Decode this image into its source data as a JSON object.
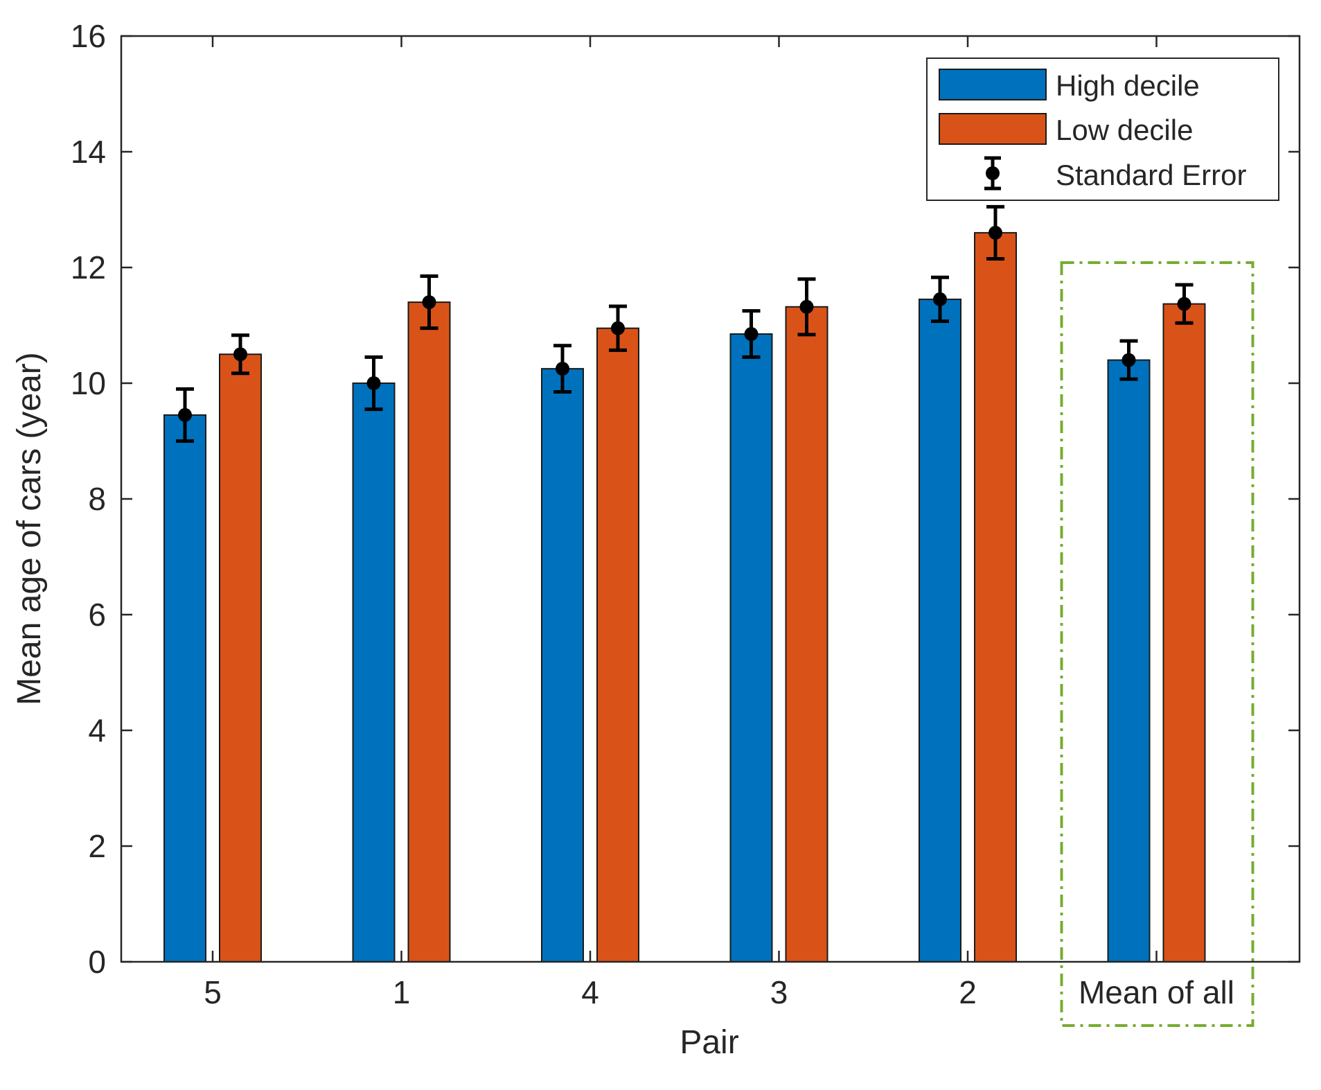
{
  "chart_data": {
    "type": "bar",
    "title": "",
    "xlabel": "Pair",
    "ylabel": "Mean age of cars (year)",
    "ylim": [
      0,
      16
    ],
    "yticks": [
      0,
      2,
      4,
      6,
      8,
      10,
      12,
      14,
      16
    ],
    "categories": [
      "5",
      "1",
      "4",
      "3",
      "2",
      "Mean of all"
    ],
    "series": [
      {
        "name": "High decile",
        "color": "#0072BD",
        "values": [
          9.45,
          10.0,
          10.25,
          10.85,
          11.45,
          10.4
        ],
        "errors": [
          0.45,
          0.45,
          0.4,
          0.4,
          0.38,
          0.33
        ]
      },
      {
        "name": "Low decile",
        "color": "#D95319",
        "values": [
          10.5,
          11.4,
          10.95,
          11.32,
          12.6,
          11.37
        ],
        "errors": [
          0.33,
          0.45,
          0.38,
          0.48,
          0.45,
          0.33
        ]
      }
    ],
    "error_bar_label": "Standard Error",
    "legend_position": "top-right",
    "highlighted_category": "Mean of all",
    "highlight_color": "#77AC30",
    "grid": false
  }
}
